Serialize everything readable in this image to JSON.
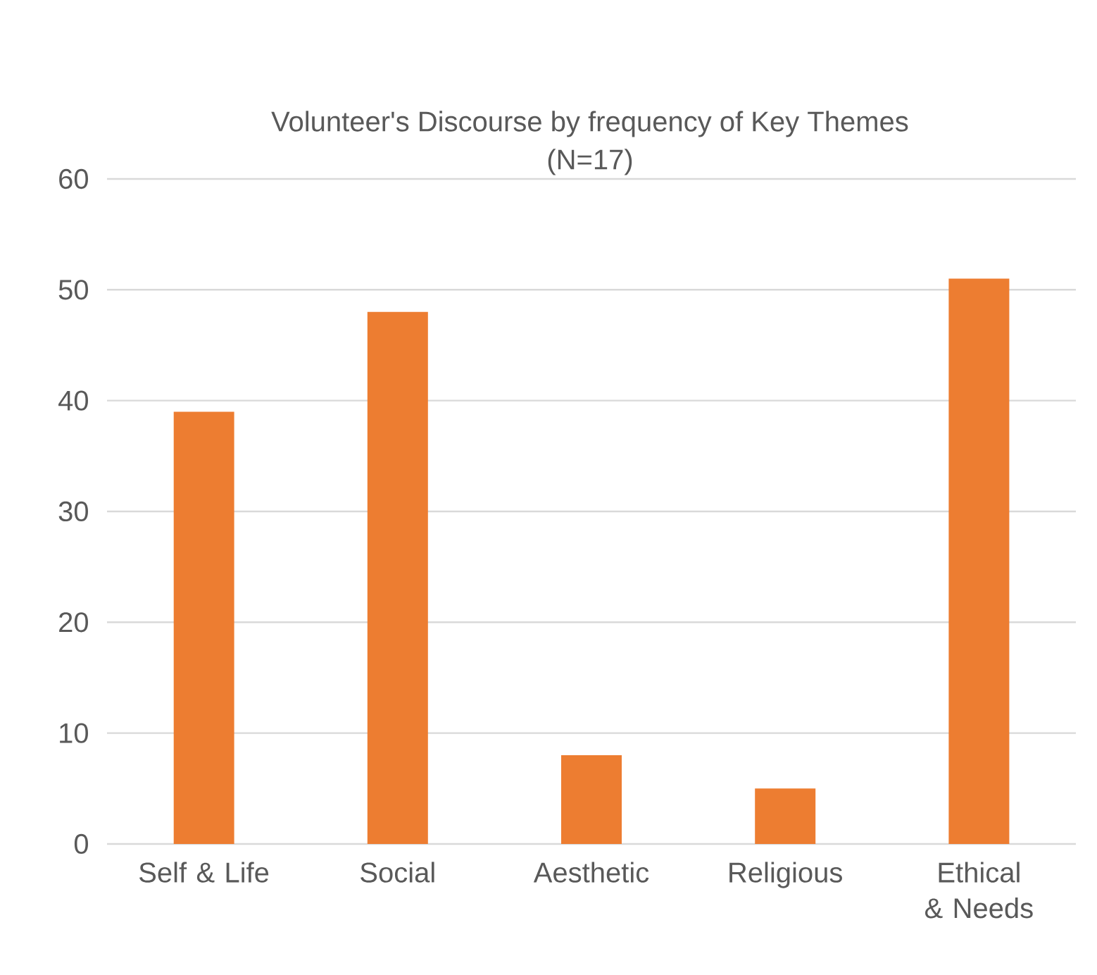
{
  "chart_data": {
    "type": "bar",
    "title": "Volunteer's Discourse by frequency of Key Themes",
    "subtitle": "(N=17)",
    "categories": [
      "Self & Life",
      "Social",
      "Aesthetic",
      "Religious",
      "Ethical & Needs"
    ],
    "values": [
      39,
      48,
      8,
      5,
      51
    ],
    "color": "#ed7d31",
    "ylim": [
      0,
      60
    ],
    "yticks": [
      0,
      10,
      20,
      30,
      40,
      50,
      60
    ],
    "grid": "y"
  }
}
